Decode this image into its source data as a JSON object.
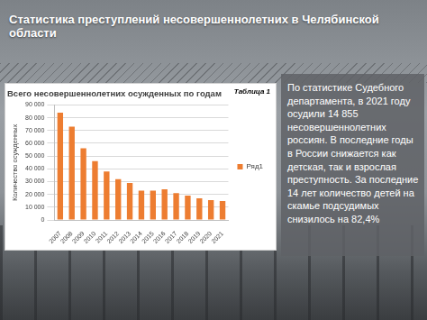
{
  "slide": {
    "title": "Статистика преступлений несовершеннолетних в Челябинской области",
    "text": "По статистике Судебного департамента, в 2021 году осудили 14 855 несовершеннолетних россиян. В последние годы в России снижается как детская, так и взрослая преступность. За последние 14 лет количество детей на скамье подсудимых снизилось на 82,4%"
  },
  "chart_data": {
    "type": "bar",
    "title": "Всего несовершеннолетних осужденных по годам",
    "annotation": "Таблица 1",
    "y_label": "Количество осужденных",
    "categories": [
      "2007",
      "2008",
      "2009",
      "2010",
      "2011",
      "2012",
      "2013",
      "2014",
      "2015",
      "2016",
      "2017",
      "2018",
      "2019",
      "2020",
      "2021"
    ],
    "series": [
      {
        "name": "Ряд1",
        "color": "#ed7d31",
        "values": [
          84000,
          73000,
          56000,
          46000,
          38000,
          32000,
          29000,
          23000,
          23000,
          24000,
          21000,
          19000,
          17000,
          15500,
          14855
        ]
      }
    ],
    "ylim": [
      0,
      90000
    ],
    "yticks": [
      0,
      {
        "value": 10000,
        "label": "10 000"
      },
      {
        "value": 20000,
        "label": "20 000"
      },
      {
        "value": 30000,
        "label": "30 000"
      },
      {
        "value": 40000,
        "label": "40 000"
      },
      {
        "value": 50000,
        "label": "50 000"
      },
      {
        "value": 60000,
        "label": "60 000"
      },
      {
        "value": 70000,
        "label": "70 000"
      },
      {
        "value": 80000,
        "label": "80 000"
      },
      {
        "value": 90000,
        "label": "90 000"
      }
    ],
    "grid": true,
    "legend": "right"
  }
}
